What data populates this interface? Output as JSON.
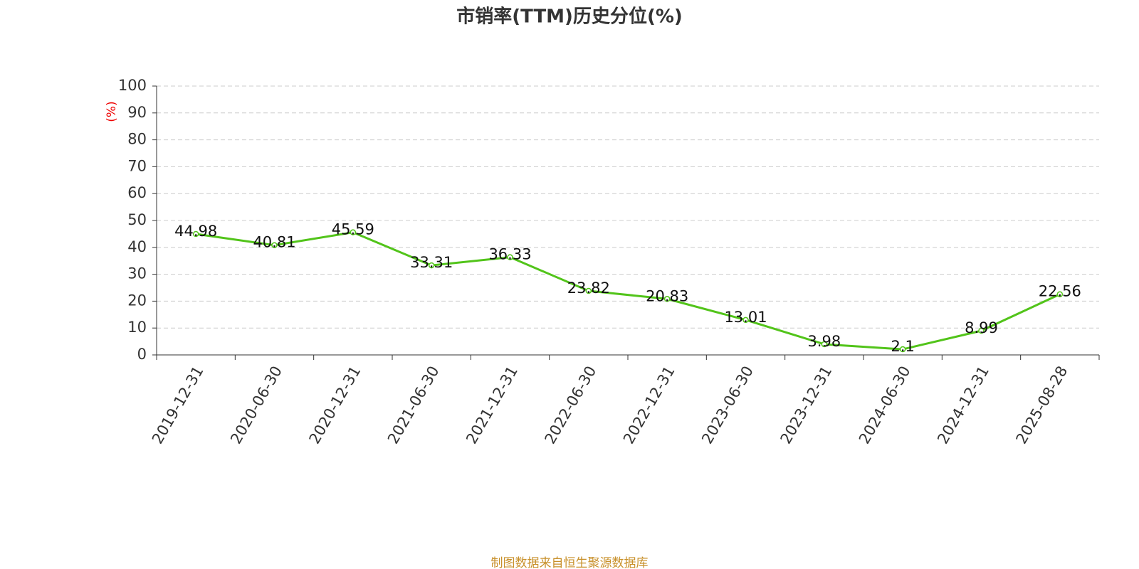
{
  "chart_data": {
    "type": "line",
    "title": "市销率(TTM)历史分位(%)",
    "y_label": "(%)",
    "categories": [
      "2019-12-31",
      "2020-06-30",
      "2020-12-31",
      "2021-06-30",
      "2021-12-31",
      "2022-06-30",
      "2022-12-31",
      "2023-06-30",
      "2023-12-31",
      "2024-06-30",
      "2024-12-31",
      "2025-08-28"
    ],
    "series": [
      {
        "name": "市销率(TTM)历史分位",
        "color": "#52c41a",
        "values": [
          44.98,
          40.81,
          45.59,
          33.31,
          36.33,
          23.82,
          20.83,
          13.01,
          3.98,
          2.1,
          8.99,
          22.56
        ]
      }
    ],
    "ylim": [
      0,
      100
    ],
    "yticks": [
      0,
      10,
      20,
      30,
      40,
      50,
      60,
      70,
      80,
      90,
      100
    ],
    "grid": true,
    "source": "制图数据来自恒生聚源数据库"
  }
}
